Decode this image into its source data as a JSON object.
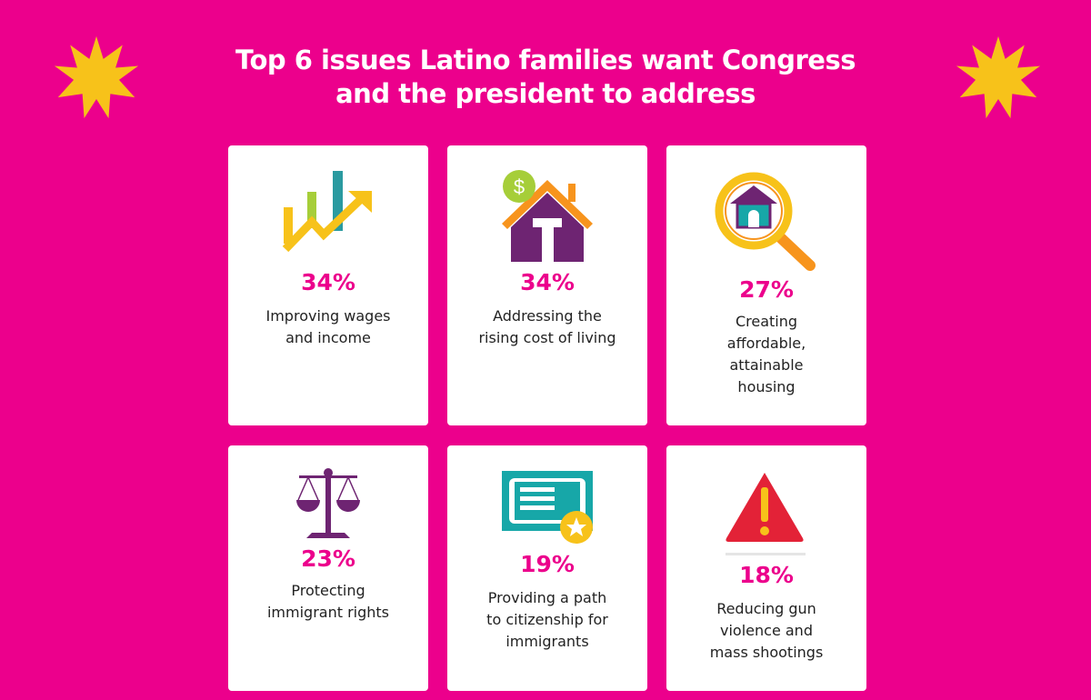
{
  "title": {
    "line1": "Top 6 issues Latino families want Congress",
    "line2": "and the president to address"
  },
  "colors": {
    "background": "#EC008C",
    "accent": "#EC008C",
    "star": "#F7C21A",
    "card": "#FFFFFF"
  },
  "issues": [
    {
      "icon": "rising-chart-icon",
      "percent": "34%",
      "label": [
        "Improving wages",
        "and income"
      ]
    },
    {
      "icon": "house-dollar-icon",
      "percent": "34%",
      "label": [
        "Addressing the",
        "rising cost of living"
      ]
    },
    {
      "icon": "magnifier-house-icon",
      "percent": "27%",
      "label": [
        "Creating",
        "affordable,",
        "attainable",
        "housing"
      ]
    },
    {
      "icon": "scales-of-justice-icon",
      "percent": "23%",
      "label": [
        "Protecting",
        "immigrant rights"
      ]
    },
    {
      "icon": "certificate-icon",
      "percent": "19%",
      "label": [
        "Providing a path",
        "to citizenship for",
        "immigrants"
      ]
    },
    {
      "icon": "warning-icon",
      "percent": "18%",
      "label": [
        "Reducing gun",
        "violence and",
        "mass shootings"
      ]
    }
  ]
}
